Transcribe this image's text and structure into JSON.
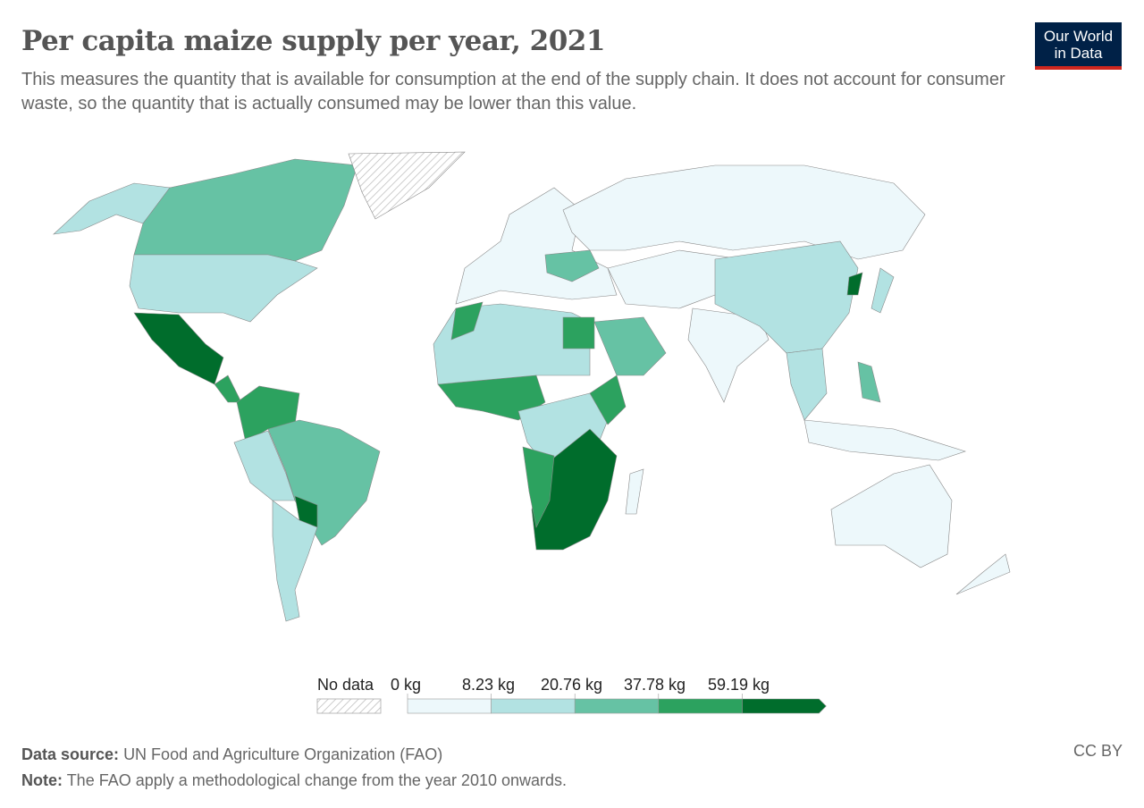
{
  "title": "Per capita maize supply per year, 2021",
  "subtitle": "This measures the quantity that is available for consumption at the end of the supply chain. It does not account for consumer waste, so the quantity that is actually consumed may be lower than this value.",
  "logo": {
    "line1": "Our World",
    "line2": "in Data"
  },
  "legend": {
    "no_data": "No data",
    "bins": [
      "0 kg",
      "8.23 kg",
      "20.76 kg",
      "37.78 kg",
      "59.19 kg"
    ],
    "colors": [
      "#edf8fb",
      "#b2e2e2",
      "#66c2a4",
      "#2ca25f",
      "#006d2c"
    ]
  },
  "footer": {
    "source_label": "Data source:",
    "source": "UN Food and Agriculture Organization (FAO)",
    "note_label": "Note:",
    "note": "The FAO apply a methodological change from the year 2010 onwards.",
    "license": "CC BY"
  }
}
